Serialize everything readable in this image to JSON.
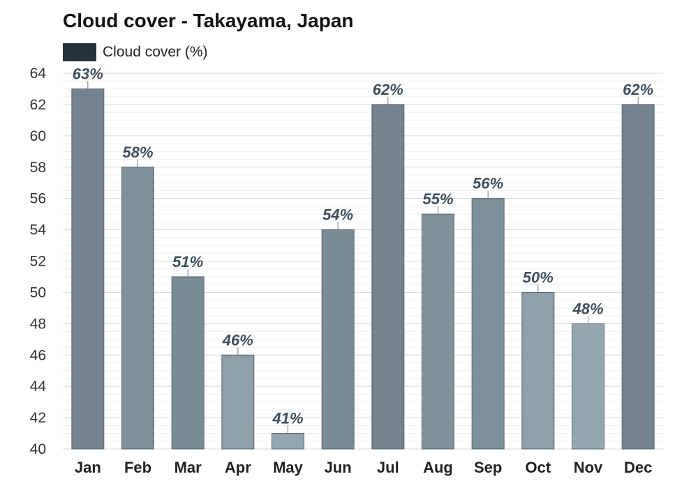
{
  "title": "Cloud cover - Takayama, Japan",
  "legend": {
    "label": "Cloud cover (%)",
    "color": "#26313b"
  },
  "chart_data": {
    "type": "bar",
    "title": "Cloud cover - Takayama, Japan",
    "xlabel": "",
    "ylabel": "",
    "categories": [
      "Jan",
      "Feb",
      "Mar",
      "Apr",
      "May",
      "Jun",
      "Jul",
      "Aug",
      "Sep",
      "Oct",
      "Nov",
      "Dec"
    ],
    "series": [
      {
        "name": "Cloud cover (%)",
        "values": [
          63,
          58,
          51,
          46,
          41,
          54,
          62,
          55,
          56,
          50,
          48,
          62
        ]
      }
    ],
    "data_labels": [
      "63%",
      "58%",
      "51%",
      "46%",
      "41%",
      "54%",
      "62%",
      "55%",
      "56%",
      "50%",
      "48%",
      "62%"
    ],
    "ylim": [
      40,
      64
    ],
    "yticks": [
      40,
      42,
      44,
      46,
      48,
      50,
      52,
      54,
      56,
      58,
      60,
      62,
      64
    ],
    "grid": true,
    "legend_position": "top-left",
    "bar_colors": [
      "#74838e",
      "#7f9099",
      "#7b8c96",
      "#8fa0aa",
      "#95a6b0",
      "#7b8c96",
      "#74838e",
      "#7f9099",
      "#7f9099",
      "#8fa0aa",
      "#95a6b0",
      "#74838e"
    ],
    "bar_border": "#56656f"
  }
}
